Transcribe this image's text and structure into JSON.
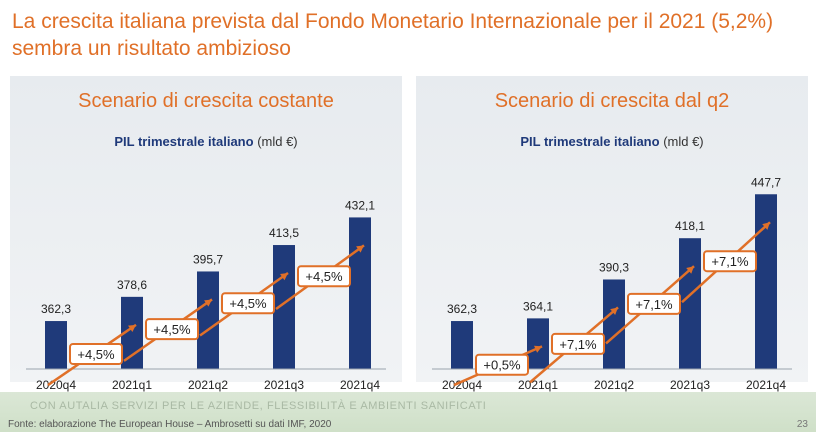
{
  "title_line1": "La crescita italiana prevista dal Fondo Monetario Internazionale per il 2021 (5,2%)",
  "title_line2": "sembra un risultato ambizioso",
  "colors": {
    "accent": "#e07028",
    "bar": "#1f3a7a",
    "arrow": "#e07028"
  },
  "chart_data": [
    {
      "type": "bar",
      "title": "Scenario di crescita costante",
      "subtitle_bold": "PIL trimestrale italiano",
      "subtitle_unit": "(mld €)",
      "categories": [
        "2020q4",
        "2021q1",
        "2021q2",
        "2021q3",
        "2021q4"
      ],
      "values": [
        362.3,
        378.6,
        395.7,
        413.5,
        432.1
      ],
      "value_labels": [
        "362,3",
        "378,6",
        "395,7",
        "413,5",
        "432,1"
      ],
      "growth_labels": [
        "+4,5%",
        "+4,5%",
        "+4,5%",
        "+4,5%"
      ],
      "ylim": [
        330,
        460
      ]
    },
    {
      "type": "bar",
      "title": "Scenario di crescita dal q2",
      "subtitle_bold": "PIL trimestrale italiano",
      "subtitle_unit": "(mld €)",
      "categories": [
        "2020q4",
        "2021q1",
        "2021q2",
        "2021q3",
        "2021q4"
      ],
      "values": [
        362.3,
        364.1,
        390.3,
        418.1,
        447.7
      ],
      "value_labels": [
        "362,3",
        "364,1",
        "390,3",
        "418,1",
        "447,7"
      ],
      "growth_labels": [
        "+0,5%",
        "+7,1%",
        "+7,1%",
        "+7,1%"
      ],
      "ylim": [
        330,
        460
      ]
    }
  ],
  "footer": {
    "faded_text": "CON AUTALIA SERVIZI PER LE AZIENDE, FLESSIBILITÀ E AMBIENTI SANIFICATI",
    "source": "Fonte: elaborazione The European House – Ambrosetti su dati IMF, 2020",
    "page_number": "23"
  }
}
